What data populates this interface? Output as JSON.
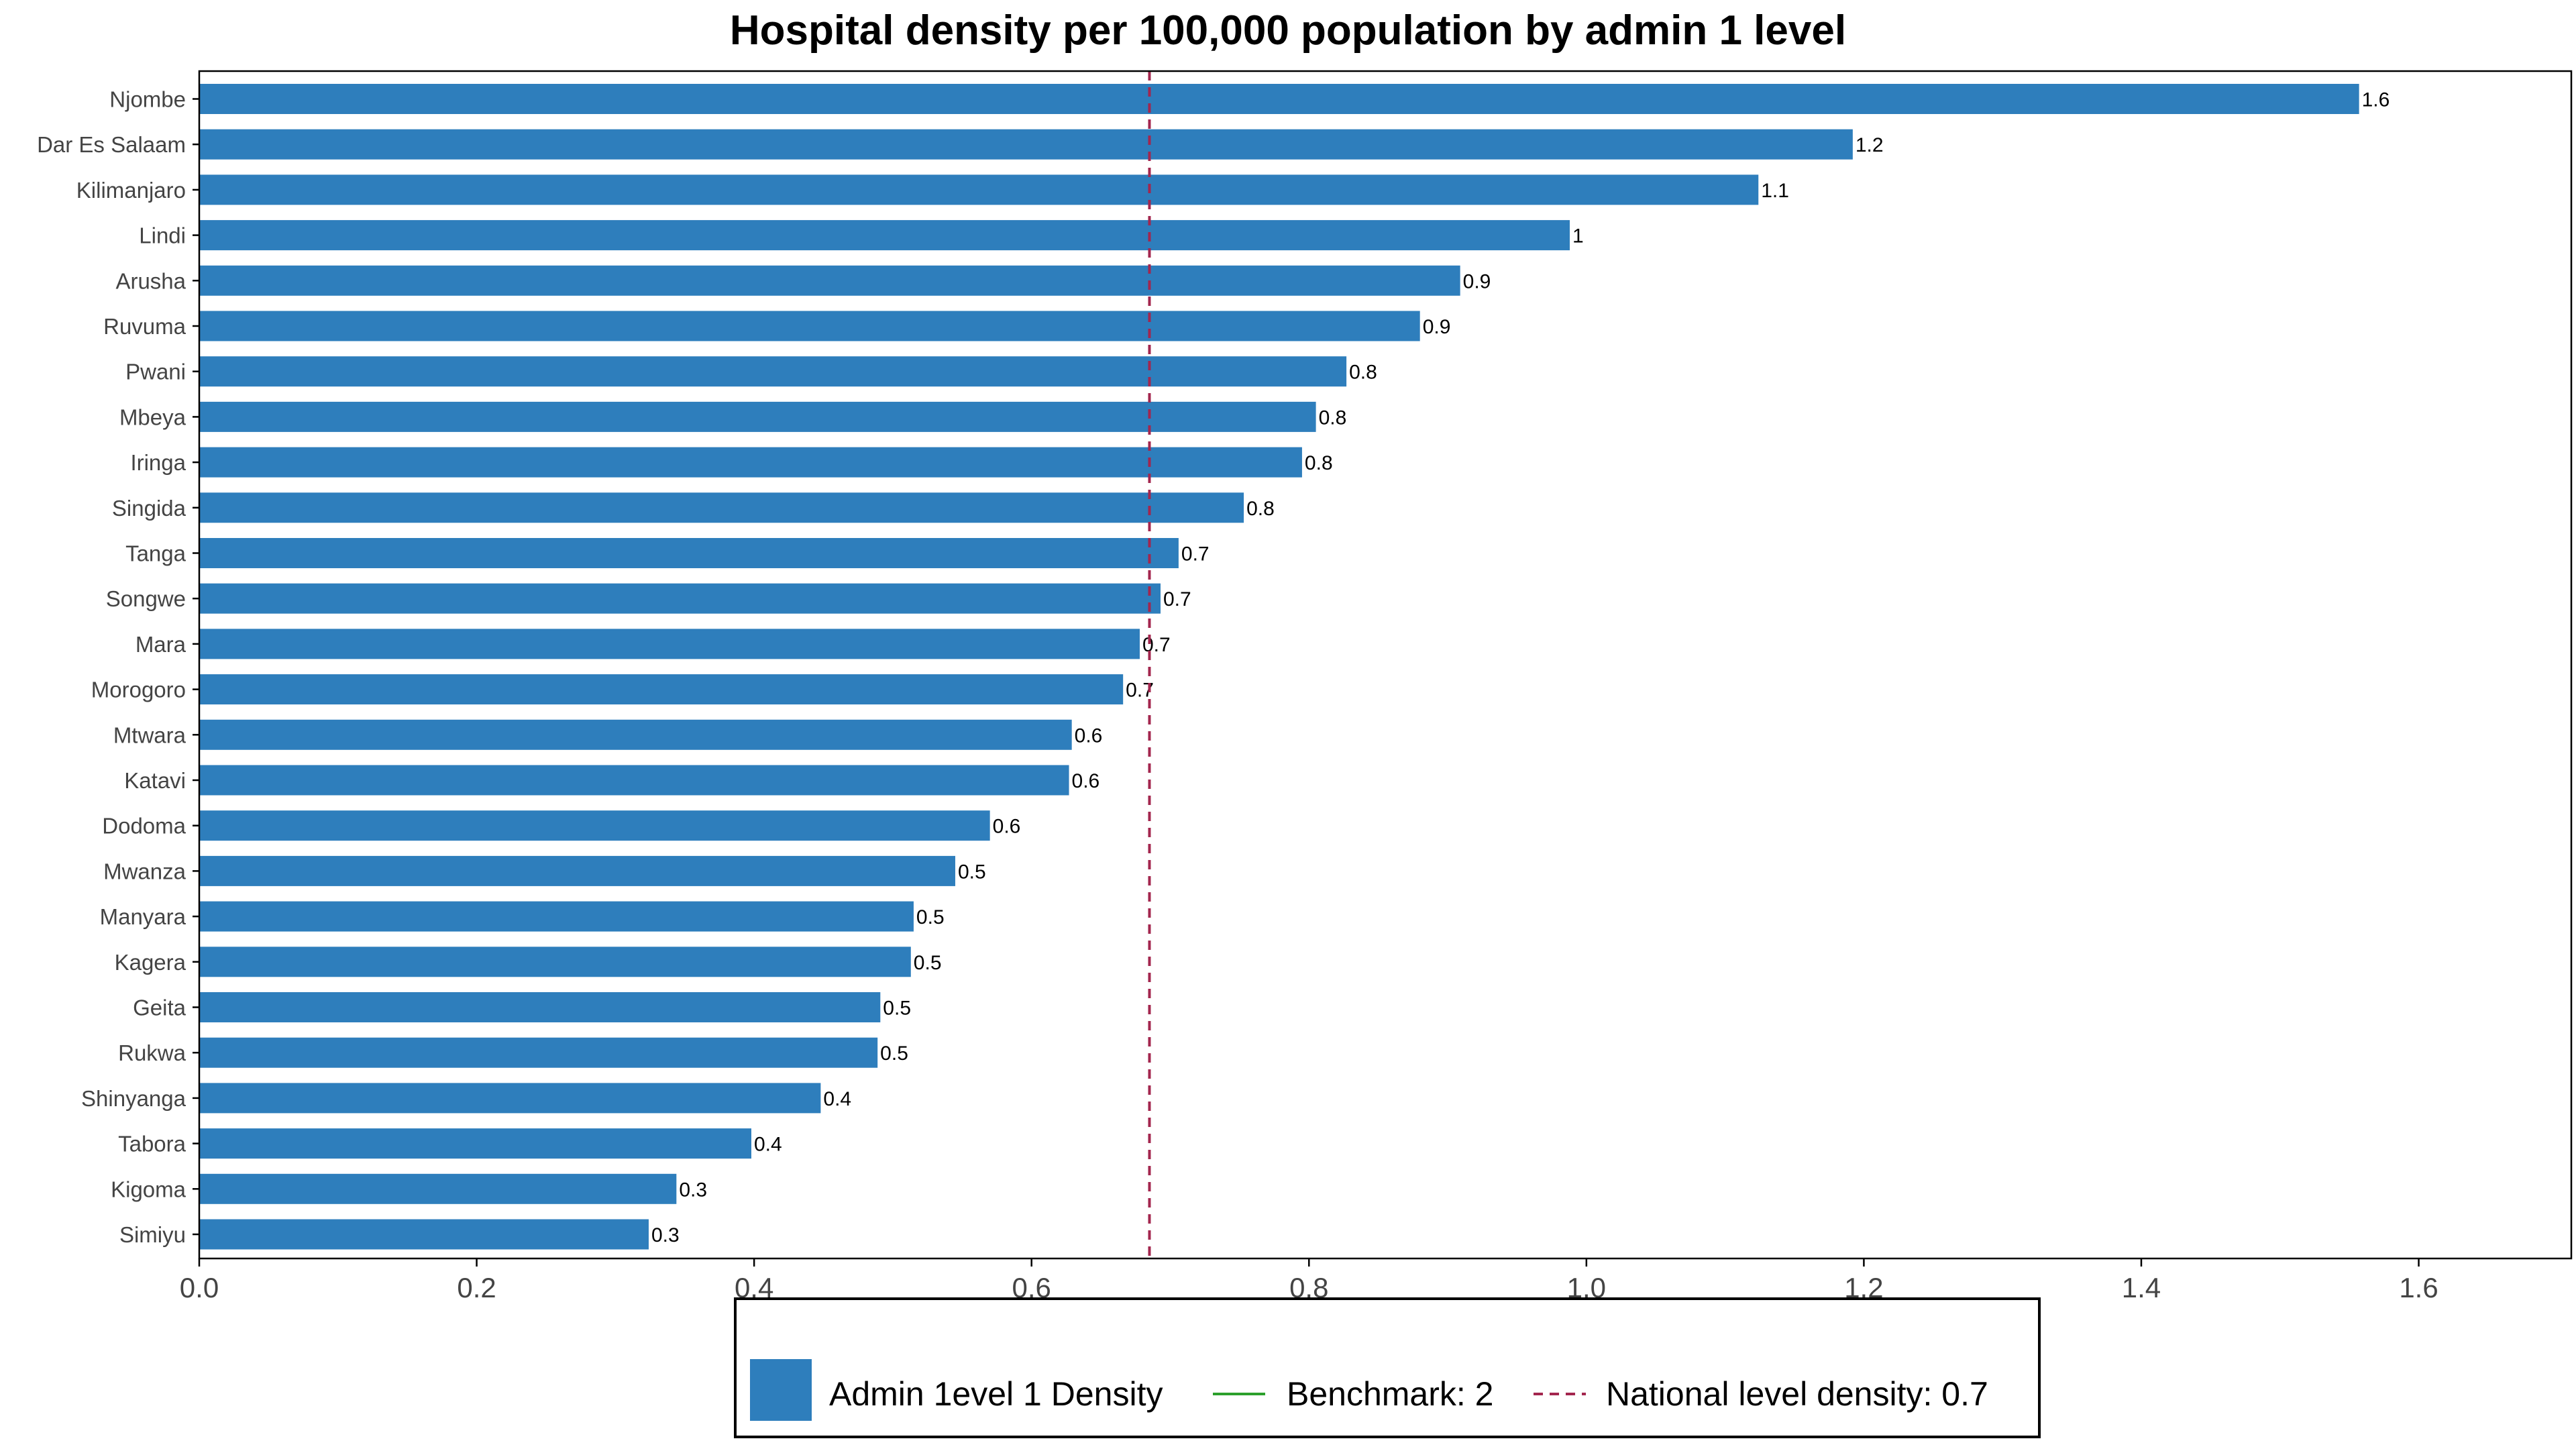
{
  "chart_data": {
    "type": "bar",
    "orientation": "horizontal",
    "title": "Hospital density per 100,000 population by admin 1 level",
    "xlabel": "",
    "ylabel": "",
    "xlim": [
      0,
      1.71
    ],
    "x_ticks": [
      "0.0",
      "0.2",
      "0.4",
      "0.6",
      "0.8",
      "1.0",
      "1.2",
      "1.4",
      "1.6"
    ],
    "grid": false,
    "categories": [
      "Njombe",
      "Dar Es Salaam",
      "Kilimanjaro",
      "Lindi",
      "Arusha",
      "Ruvuma",
      "Pwani",
      "Mbeya",
      "Iringa",
      "Singida",
      "Tanga",
      "Songwe",
      "Mara",
      "Morogoro",
      "Mtwara",
      "Katavi",
      "Dodoma",
      "Mwanza",
      "Manyara",
      "Kagera",
      "Geita",
      "Rukwa",
      "Shinyanga",
      "Tabora",
      "Kigoma",
      "Simiyu"
    ],
    "values": [
      1.557,
      1.192,
      1.124,
      0.988,
      0.909,
      0.88,
      0.827,
      0.805,
      0.795,
      0.753,
      0.706,
      0.693,
      0.678,
      0.666,
      0.629,
      0.627,
      0.57,
      0.545,
      0.515,
      0.513,
      0.491,
      0.489,
      0.448,
      0.398,
      0.344,
      0.324
    ],
    "data_labels": [
      "1.6",
      "1.2",
      "1.1",
      "1",
      "0.9",
      "0.9",
      "0.8",
      "0.8",
      "0.8",
      "0.8",
      "0.7",
      "0.7",
      "0.7",
      "0.7",
      "0.6",
      "0.6",
      "0.6",
      "0.5",
      "0.5",
      "0.5",
      "0.5",
      "0.5",
      "0.4",
      "0.4",
      "0.3",
      "0.3"
    ],
    "bar_color": "#2e7ebc",
    "reference_line": {
      "value": 0.685,
      "style": "dashed",
      "color": "#a3264e"
    },
    "benchmark_color": "#2ca02c",
    "legend": {
      "placement": "bottom-center",
      "entries": [
        {
          "label": "Admin 1evel 1 Density",
          "kind": "bar",
          "color": "#2e7ebc"
        },
        {
          "label": "Benchmark: 2",
          "kind": "line",
          "color": "#2ca02c"
        },
        {
          "label": "National level density: 0.7",
          "kind": "dashed-line",
          "color": "#a3264e"
        }
      ]
    }
  }
}
